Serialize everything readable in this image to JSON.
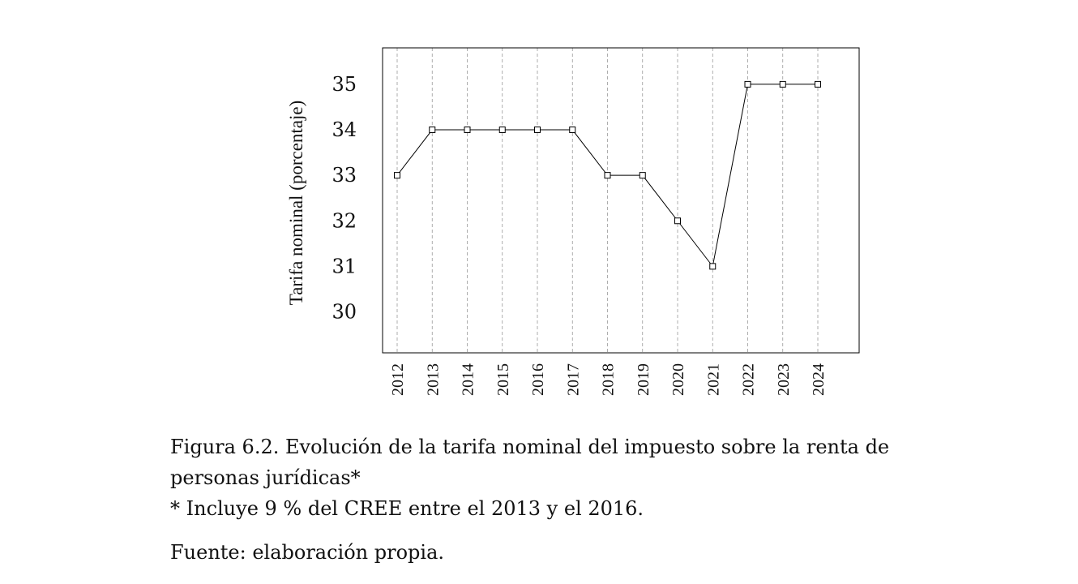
{
  "chart_data": {
    "type": "line",
    "title": "",
    "xlabel": "",
    "ylabel": "Tarifa nominal (porcentaje)",
    "x": [
      "2012",
      "2013",
      "2014",
      "2015",
      "2016",
      "2017",
      "2018",
      "2019",
      "2020",
      "2021",
      "2022",
      "2023",
      "2024"
    ],
    "series": [
      {
        "values": [
          33,
          34,
          34,
          34,
          34,
          34,
          33,
          33,
          32,
          31,
          35,
          35,
          35
        ]
      }
    ],
    "yticks": [
      30,
      31,
      32,
      33,
      34,
      35
    ],
    "ylim": [
      29.1,
      35.8
    ],
    "grid": "vertical dashed",
    "marker": "square",
    "line_color": "#000000"
  },
  "caption": {
    "line1": "Figura 6.2. Evolución de la tarifa nominal del impuesto sobre la renta de personas jurídicas*",
    "note": "* Incluye 9 % del CREE entre el 2013 y el 2016.",
    "source": "Fuente: elaboración propia."
  }
}
